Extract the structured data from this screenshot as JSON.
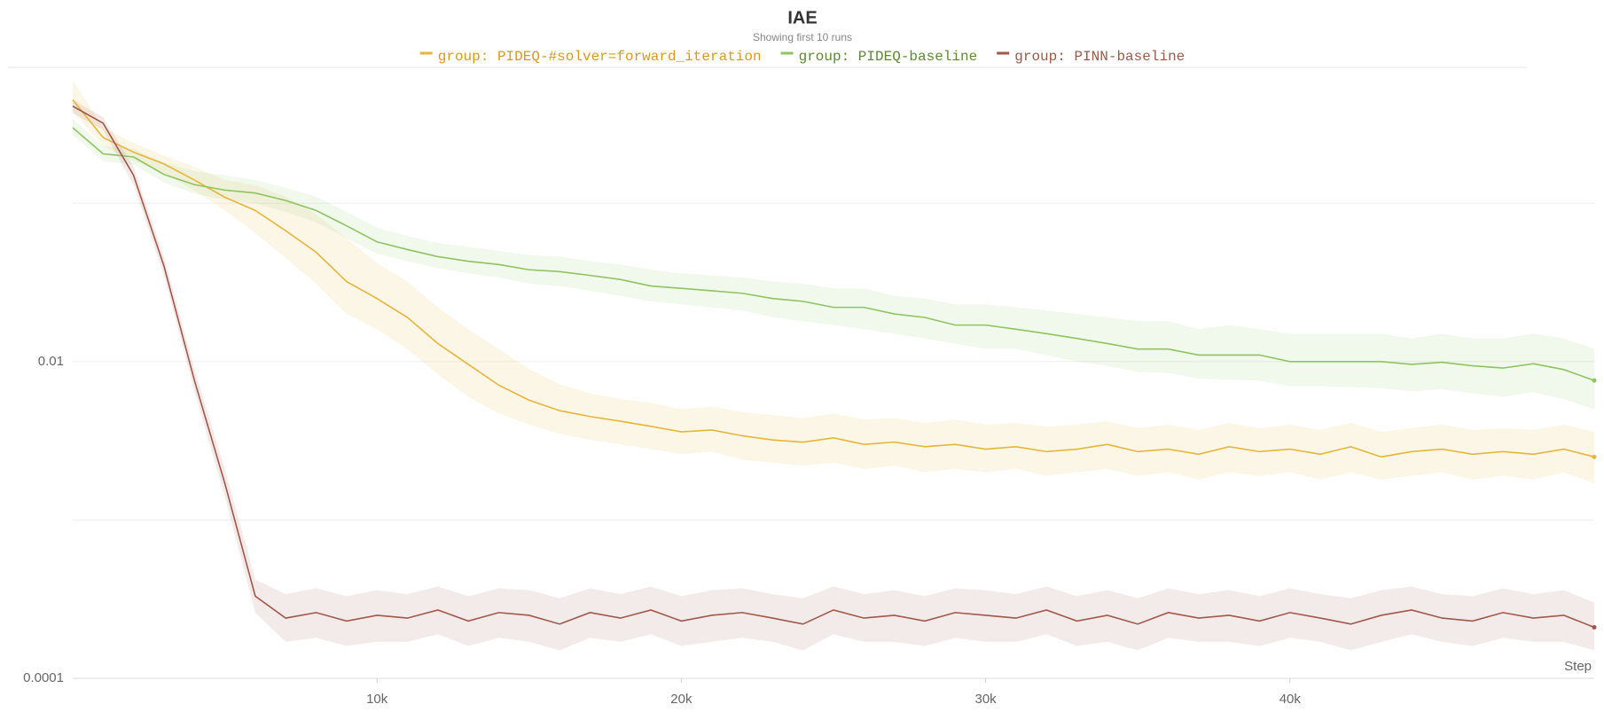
{
  "chart_data": {
    "type": "line",
    "title": "IAE",
    "subtitle": "Showing first 10 runs",
    "x_label": "Step",
    "log_y": true,
    "grid": true,
    "legend_position": "top",
    "x": [
      0,
      1000,
      2000,
      3000,
      4000,
      5000,
      6000,
      7000,
      8000,
      9000,
      10000,
      11000,
      12000,
      13000,
      14000,
      15000,
      16000,
      17000,
      18000,
      19000,
      20000,
      21000,
      22000,
      23000,
      24000,
      25000,
      26000,
      27000,
      28000,
      29000,
      30000,
      31000,
      32000,
      33000,
      34000,
      35000,
      36000,
      37000,
      38000,
      39000,
      40000,
      41000,
      42000,
      43000,
      44000,
      45000,
      46000,
      47000,
      48000,
      49000,
      50000
    ],
    "xlim": [
      0,
      50000
    ],
    "xticks": [
      {
        "value": 10000,
        "label": "10k"
      },
      {
        "value": 20000,
        "label": "20k"
      },
      {
        "value": 30000,
        "label": "30k"
      },
      {
        "value": 40000,
        "label": "40k"
      }
    ],
    "ylim": [
      0.0001,
      0.73
    ],
    "yticks": [
      0.0001,
      0.01
    ],
    "minor_yticks": [
      0.001,
      0.1
    ],
    "series": [
      {
        "name": "group: PIDEQ-#solver=forward_iteration",
        "color": "#e8b53a",
        "label_color": "#d99a1f",
        "values": [
          0.45,
          0.26,
          0.21,
          0.177,
          0.14,
          0.109,
          0.09,
          0.067,
          0.049,
          0.032,
          0.025,
          0.019,
          0.013,
          0.0096,
          0.0071,
          0.0057,
          0.0049,
          0.0045,
          0.0042,
          0.0039,
          0.0036,
          0.0037,
          0.0034,
          0.0032,
          0.0031,
          0.0033,
          0.003,
          0.0031,
          0.0029,
          0.003,
          0.0028,
          0.0029,
          0.0027,
          0.0028,
          0.003,
          0.0027,
          0.0028,
          0.0026,
          0.0029,
          0.0027,
          0.0028,
          0.0026,
          0.0029,
          0.0025,
          0.0027,
          0.0028,
          0.0026,
          0.0027,
          0.0026,
          0.0028,
          0.0025
        ],
        "upper": [
          0.6,
          0.3,
          0.24,
          0.2,
          0.17,
          0.14,
          0.13,
          0.11,
          0.085,
          0.06,
          0.042,
          0.032,
          0.022,
          0.016,
          0.012,
          0.009,
          0.0072,
          0.0063,
          0.0058,
          0.0055,
          0.005,
          0.0052,
          0.0048,
          0.0046,
          0.0044,
          0.0047,
          0.0043,
          0.0044,
          0.0041,
          0.0043,
          0.004,
          0.0041,
          0.0039,
          0.004,
          0.0042,
          0.0038,
          0.004,
          0.0037,
          0.0041,
          0.0038,
          0.004,
          0.0037,
          0.0041,
          0.0036,
          0.0038,
          0.004,
          0.0037,
          0.0038,
          0.0037,
          0.004,
          0.0036
        ],
        "lower": [
          0.38,
          0.23,
          0.185,
          0.155,
          0.12,
          0.09,
          0.065,
          0.045,
          0.031,
          0.02,
          0.016,
          0.012,
          0.0083,
          0.006,
          0.0047,
          0.004,
          0.0035,
          0.0032,
          0.003,
          0.0028,
          0.0026,
          0.0027,
          0.0024,
          0.0023,
          0.0022,
          0.0023,
          0.0021,
          0.0022,
          0.002,
          0.0021,
          0.002,
          0.0021,
          0.0019,
          0.002,
          0.0021,
          0.0019,
          0.002,
          0.0018,
          0.002,
          0.0019,
          0.002,
          0.0018,
          0.002,
          0.0018,
          0.0019,
          0.002,
          0.0018,
          0.0019,
          0.0018,
          0.002,
          0.0017
        ]
      },
      {
        "name": "group: PIDEQ-baseline",
        "color": "#8fc460",
        "label_color": "#5e8a33",
        "values": [
          0.3,
          0.205,
          0.196,
          0.152,
          0.131,
          0.121,
          0.116,
          0.104,
          0.09,
          0.072,
          0.057,
          0.051,
          0.046,
          0.043,
          0.041,
          0.038,
          0.037,
          0.035,
          0.033,
          0.03,
          0.029,
          0.028,
          0.027,
          0.025,
          0.024,
          0.022,
          0.022,
          0.02,
          0.019,
          0.017,
          0.017,
          0.016,
          0.015,
          0.014,
          0.013,
          0.012,
          0.012,
          0.011,
          0.011,
          0.011,
          0.01,
          0.01,
          0.01,
          0.01,
          0.0096,
          0.0099,
          0.0094,
          0.0091,
          0.0097,
          0.0089,
          0.0076
        ],
        "upper": [
          0.34,
          0.23,
          0.22,
          0.18,
          0.16,
          0.15,
          0.14,
          0.125,
          0.11,
          0.088,
          0.07,
          0.062,
          0.056,
          0.053,
          0.05,
          0.047,
          0.046,
          0.043,
          0.041,
          0.038,
          0.036,
          0.035,
          0.034,
          0.032,
          0.031,
          0.029,
          0.029,
          0.026,
          0.025,
          0.023,
          0.023,
          0.022,
          0.021,
          0.02,
          0.019,
          0.018,
          0.018,
          0.016,
          0.017,
          0.016,
          0.015,
          0.015,
          0.015,
          0.015,
          0.014,
          0.015,
          0.014,
          0.014,
          0.015,
          0.014,
          0.012
        ],
        "lower": [
          0.27,
          0.185,
          0.175,
          0.135,
          0.115,
          0.105,
          0.1,
          0.088,
          0.076,
          0.06,
          0.048,
          0.043,
          0.039,
          0.036,
          0.034,
          0.031,
          0.03,
          0.028,
          0.026,
          0.024,
          0.023,
          0.022,
          0.021,
          0.019,
          0.018,
          0.017,
          0.016,
          0.015,
          0.014,
          0.013,
          0.012,
          0.012,
          0.011,
          0.01,
          0.0094,
          0.0086,
          0.0085,
          0.0078,
          0.0077,
          0.0076,
          0.007,
          0.007,
          0.0069,
          0.0068,
          0.0065,
          0.0067,
          0.0063,
          0.006,
          0.0064,
          0.0058,
          0.005
        ]
      },
      {
        "name": "group: PINN-baseline",
        "color": "#a0584a",
        "label_color": "#9a5a4a",
        "values": [
          0.41,
          0.32,
          0.15,
          0.04,
          0.0076,
          0.0017,
          0.00033,
          0.00024,
          0.00026,
          0.00023,
          0.00025,
          0.00024,
          0.00027,
          0.00023,
          0.00026,
          0.00025,
          0.00022,
          0.00026,
          0.00024,
          0.00027,
          0.00023,
          0.00025,
          0.00026,
          0.00024,
          0.00022,
          0.00027,
          0.00024,
          0.00025,
          0.00023,
          0.00026,
          0.00025,
          0.00024,
          0.00027,
          0.00023,
          0.00025,
          0.00022,
          0.00026,
          0.00024,
          0.00025,
          0.00023,
          0.00026,
          0.00024,
          0.00022,
          0.00025,
          0.00027,
          0.00024,
          0.00023,
          0.00026,
          0.00024,
          0.00025,
          0.00021
        ],
        "upper": [
          0.45,
          0.35,
          0.17,
          0.046,
          0.009,
          0.0021,
          0.00042,
          0.00034,
          0.00037,
          0.00033,
          0.00036,
          0.00034,
          0.00038,
          0.00033,
          0.00037,
          0.00036,
          0.00032,
          0.00037,
          0.00034,
          0.00038,
          0.00033,
          0.00036,
          0.00037,
          0.00034,
          0.00032,
          0.00038,
          0.00034,
          0.00036,
          0.00033,
          0.00037,
          0.00036,
          0.00034,
          0.00038,
          0.00033,
          0.00036,
          0.00032,
          0.00037,
          0.00034,
          0.00036,
          0.00033,
          0.00037,
          0.00034,
          0.00032,
          0.00036,
          0.00038,
          0.00034,
          0.00033,
          0.00037,
          0.00034,
          0.00036,
          0.0003
        ],
        "lower": [
          0.37,
          0.29,
          0.13,
          0.035,
          0.0065,
          0.0014,
          0.00026,
          0.00017,
          0.00018,
          0.00016,
          0.00017,
          0.00017,
          0.00019,
          0.00016,
          0.00018,
          0.00017,
          0.00015,
          0.00018,
          0.00017,
          0.00019,
          0.00016,
          0.00017,
          0.00018,
          0.00017,
          0.00015,
          0.00019,
          0.00017,
          0.00017,
          0.00016,
          0.00018,
          0.00017,
          0.00017,
          0.00019,
          0.00016,
          0.00017,
          0.00015,
          0.00018,
          0.00017,
          0.00017,
          0.00016,
          0.00018,
          0.00017,
          0.00015,
          0.00017,
          0.00019,
          0.00017,
          0.00016,
          0.00018,
          0.00017,
          0.00017,
          0.00015
        ]
      }
    ]
  }
}
